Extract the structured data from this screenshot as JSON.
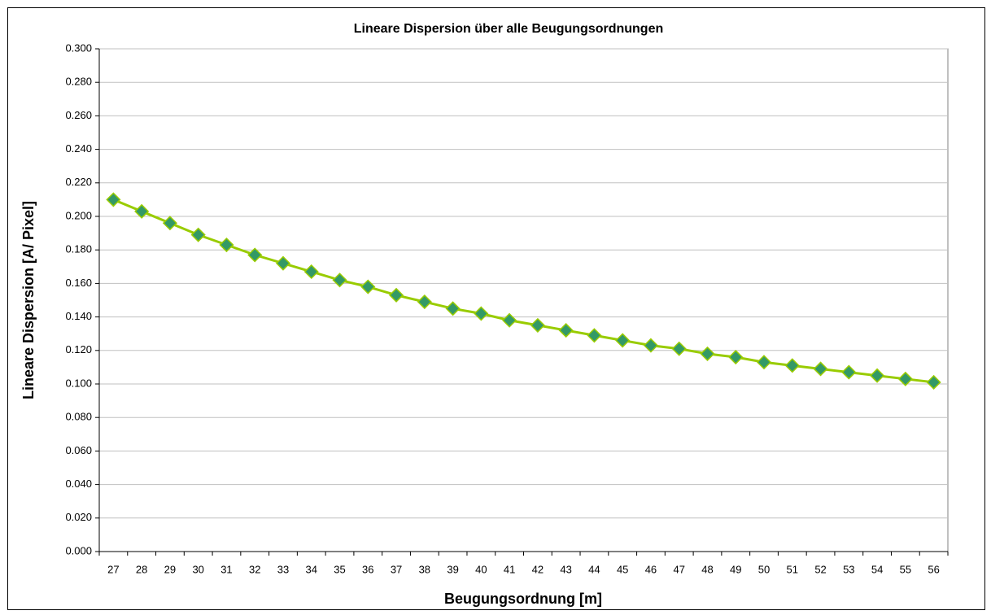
{
  "chart_data": {
    "type": "line",
    "title": "Lineare Dispersion über alle Beugungsordnungen",
    "xlabel": "Beugungsordnung [m]",
    "ylabel": "Lineare Dispersion [A/ Pixel]",
    "categories": [
      27,
      28,
      29,
      30,
      31,
      32,
      33,
      34,
      35,
      36,
      37,
      38,
      39,
      40,
      41,
      42,
      43,
      44,
      45,
      46,
      47,
      48,
      49,
      50,
      51,
      52,
      53,
      54,
      55,
      56
    ],
    "series": [
      {
        "name": "Lineare Dispersion",
        "color": "#99cc00",
        "marker_color": "#339966",
        "values": [
          0.21,
          0.203,
          0.196,
          0.189,
          0.183,
          0.177,
          0.172,
          0.167,
          0.162,
          0.158,
          0.153,
          0.149,
          0.145,
          0.142,
          0.138,
          0.135,
          0.132,
          0.129,
          0.126,
          0.123,
          0.121,
          0.118,
          0.116,
          0.113,
          0.111,
          0.109,
          0.107,
          0.105,
          0.103,
          0.101
        ]
      }
    ],
    "ylim": [
      0,
      0.3
    ],
    "yticks": [
      {
        "value": 0,
        "label": "0.000"
      },
      {
        "value": 0.02,
        "label": "0.020"
      },
      {
        "value": 0.04,
        "label": "0.040"
      },
      {
        "value": 0.06,
        "label": "0.060"
      },
      {
        "value": 0.08,
        "label": "0.080"
      },
      {
        "value": 0.1,
        "label": "0.100"
      },
      {
        "value": 0.12,
        "label": "0.120"
      },
      {
        "value": 0.14,
        "label": "0.140"
      },
      {
        "value": 0.16,
        "label": "0.160"
      },
      {
        "value": 0.18,
        "label": "0.180"
      },
      {
        "value": 0.2,
        "label": "0.200"
      },
      {
        "value": 0.22,
        "label": "0.220"
      },
      {
        "value": 0.24,
        "label": "0.240"
      },
      {
        "value": 0.26,
        "label": "0.260"
      },
      {
        "value": 0.28,
        "label": "0.280"
      },
      {
        "value": 0.3,
        "label": "0.300"
      }
    ],
    "grid": true
  }
}
